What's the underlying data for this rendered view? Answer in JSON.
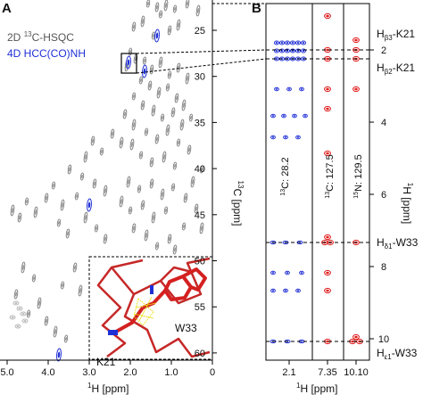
{
  "panel_a": {
    "label": "A",
    "legend_hsqc_pre": "2D ",
    "legend_hsqc_sup": "13",
    "legend_hsqc_post": "C-HSQC",
    "legend_4d": "4D HCC(CO)NH",
    "x_axis_sup": "1",
    "x_axis_label": "H [ppm]",
    "x_ticks": [
      "5.0",
      "4.0",
      "3.0",
      "2.0",
      "1.0",
      "0"
    ],
    "y_axis_sup": "13",
    "y_axis_label": "C [ppm]",
    "y_ticks": [
      "25",
      "30",
      "35",
      "40",
      "45",
      "50",
      "55",
      "60"
    ],
    "inset_labels": {
      "trp": "W33",
      "lys": "K21"
    }
  },
  "panel_b": {
    "label": "B",
    "strips": [
      {
        "nucleus_sup": "13",
        "text": "C: 28.2",
        "x_tick": "2.1"
      },
      {
        "nucleus_sup": "13",
        "text": "C: 127.5",
        "x_tick": "7.35"
      },
      {
        "nucleus_sup": "15",
        "text": "N: 129.5",
        "x_tick": "10.10"
      }
    ],
    "x_axis_sup": "1",
    "x_axis_label": "H [ppm]",
    "y_axis_sup": "1",
    "y_axis_label": "H [ppm]",
    "y_ticks": [
      "2",
      "4",
      "6",
      "8",
      "10"
    ],
    "assignments": [
      {
        "main": "H",
        "sub": "β3",
        "res": "-K21"
      },
      {
        "main": "H",
        "sub": "β2",
        "res": "-K21"
      },
      {
        "main": "H",
        "sub": "δ1",
        "res": "-W33"
      },
      {
        "main": "H",
        "sub": "ε1",
        "res": "-W33"
      }
    ]
  },
  "colors": {
    "hsqc_gray": "#8a8a8a",
    "hcc_blue": "#1f2fd6",
    "red_contour": "#e01515",
    "stick_red": "#d42020",
    "stick_yellow": "#e6e010"
  }
}
